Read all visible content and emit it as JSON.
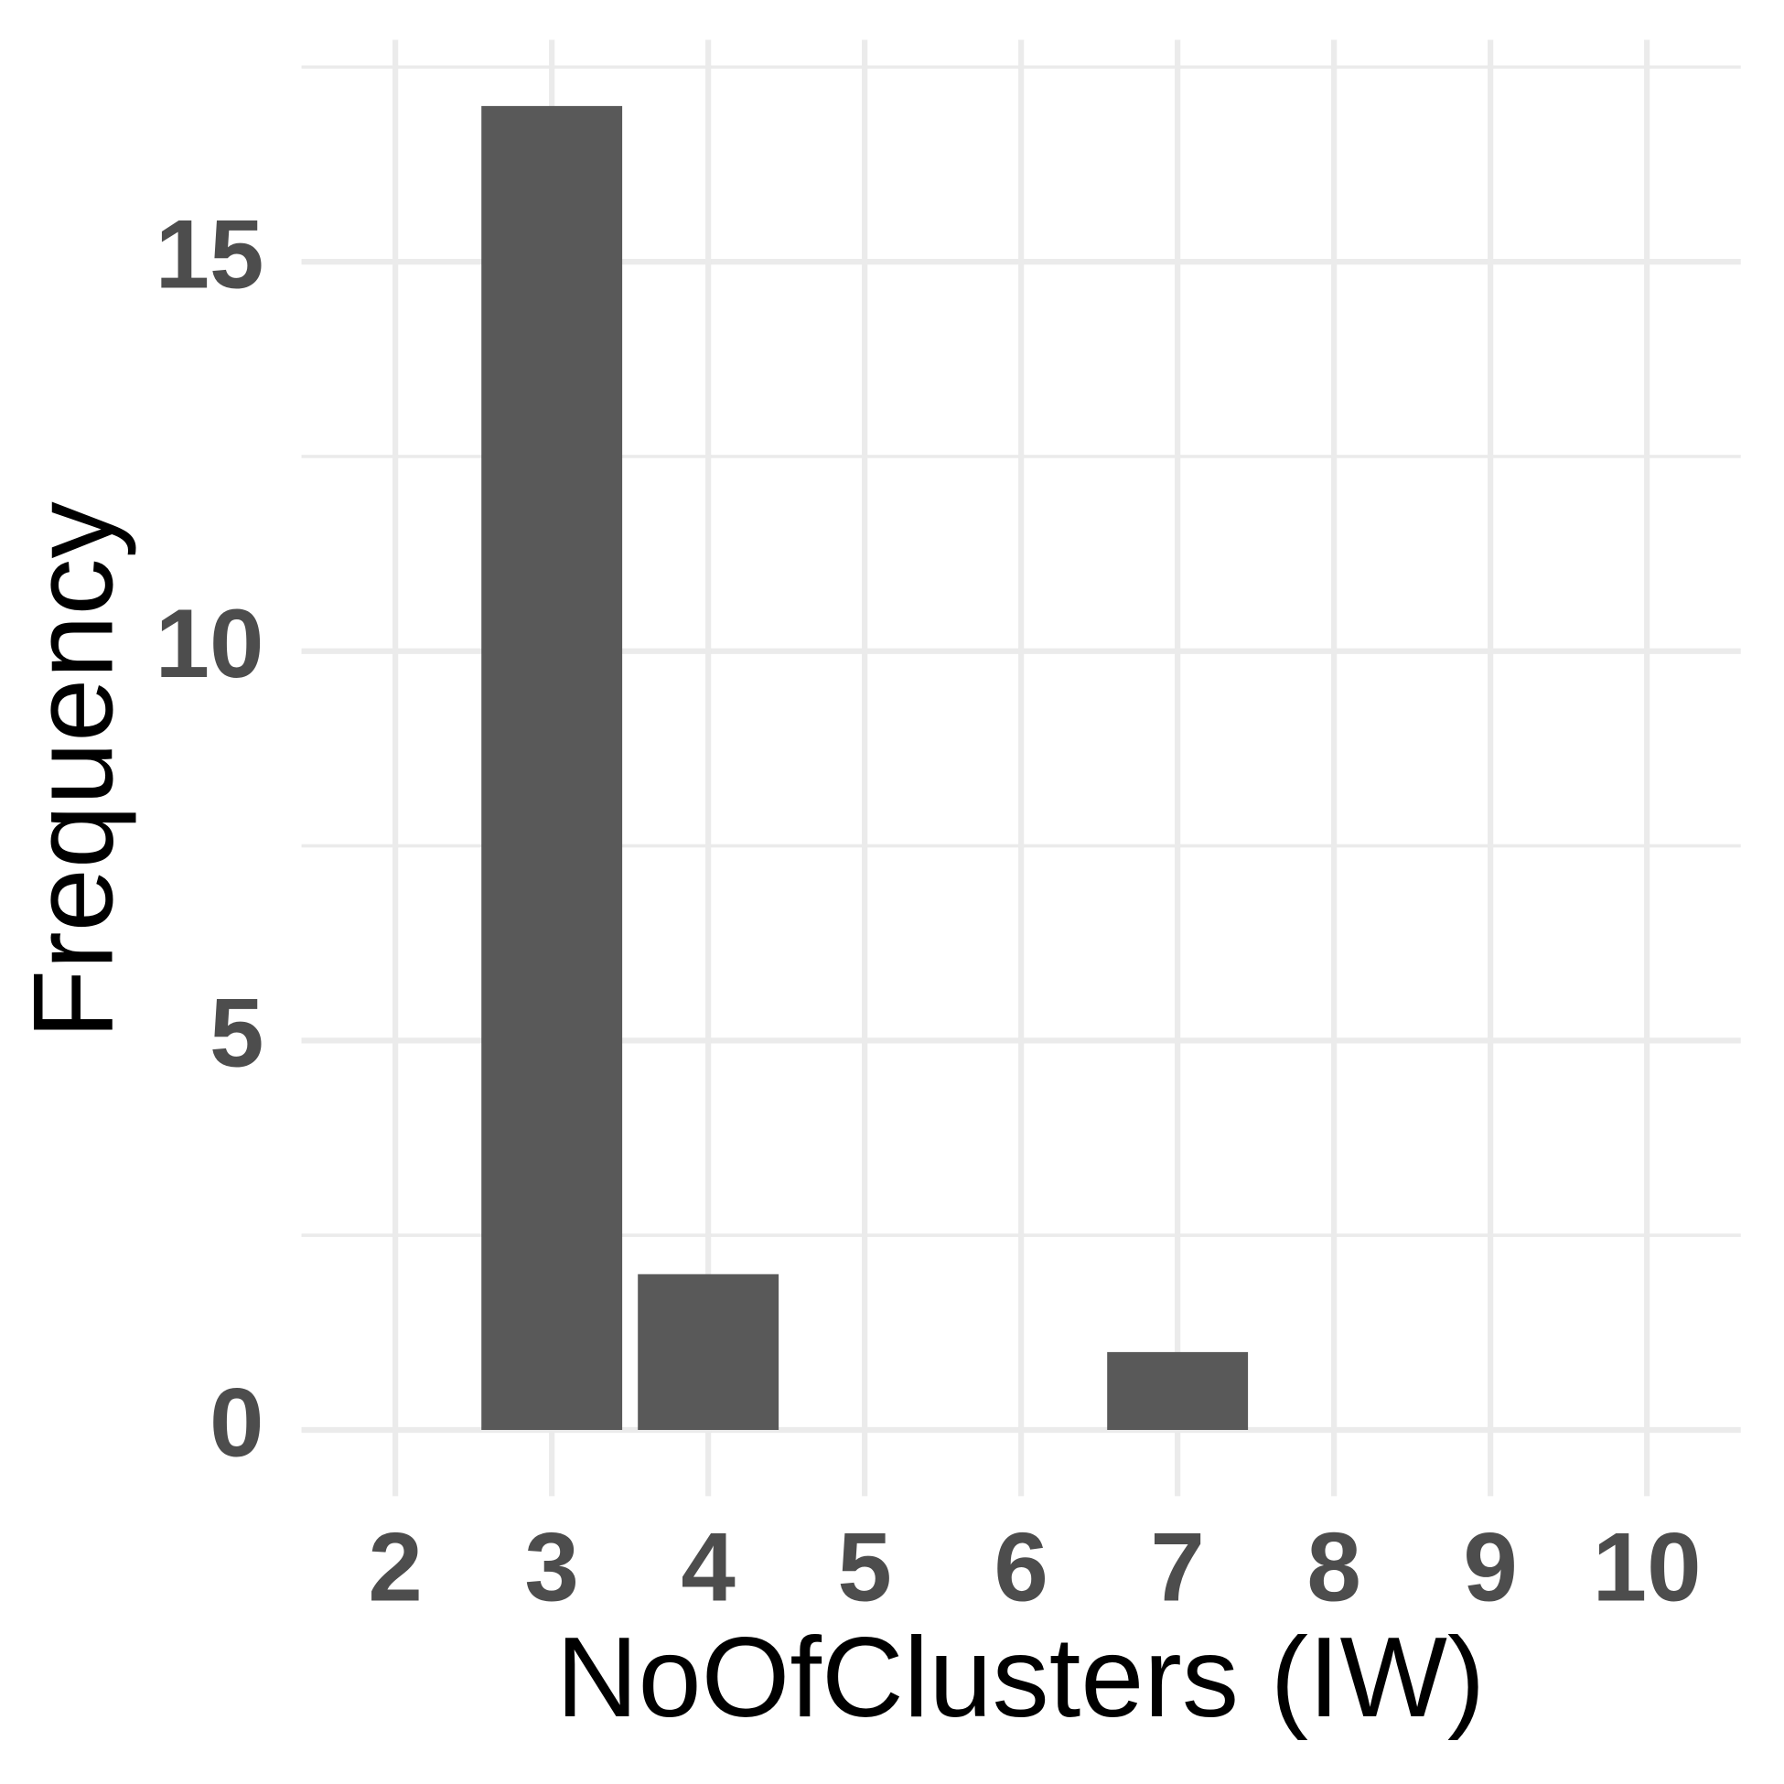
{
  "chart_data": {
    "type": "bar",
    "x_label": "NoOfClusters (IW)",
    "y_label": "Frequency",
    "x": [
      3,
      4,
      7
    ],
    "values": [
      17,
      2,
      1
    ],
    "color": "#595959",
    "xlim": [
      1.4,
      10.6
    ],
    "xticks": [
      2,
      3,
      4,
      5,
      6,
      7,
      8,
      9,
      10
    ],
    "ylim": [
      -0.85,
      17.85
    ],
    "yticks": [
      0,
      5,
      10,
      15
    ],
    "grid": true
  }
}
